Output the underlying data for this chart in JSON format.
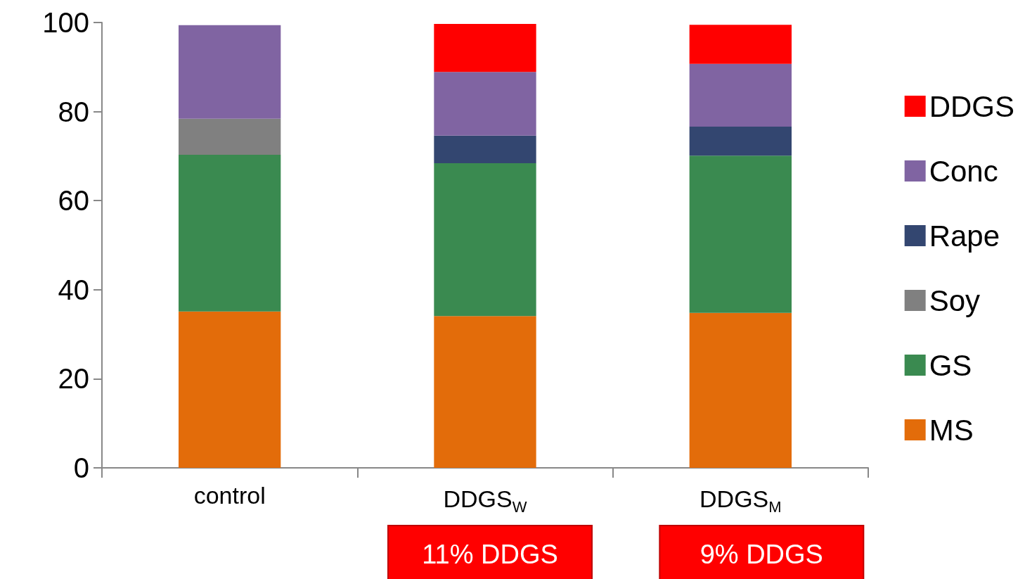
{
  "chart_data": {
    "type": "bar",
    "stacked": true,
    "categories": [
      "control",
      "DDGS$_{W}$",
      "DDGS$_{M}$"
    ],
    "series": [
      {
        "name": "MS",
        "color": "#e36c0a",
        "values": [
          35.1,
          34.1,
          34.8
        ]
      },
      {
        "name": "GS",
        "color": "#3a8a50",
        "values": [
          35.2,
          34.3,
          35.3
        ]
      },
      {
        "name": "Soy",
        "color": "#808080",
        "values": [
          8.1,
          null,
          null
        ]
      },
      {
        "name": "Rape",
        "color": "#334670",
        "values": [
          null,
          6.2,
          6.5
        ]
      },
      {
        "name": "Conc",
        "color": "#8064a2",
        "values": [
          21.0,
          14.3,
          14.1
        ]
      },
      {
        "name": "DDGS",
        "color": "#ff0000",
        "values": [
          null,
          10.8,
          8.8
        ]
      }
    ],
    "ylim": [
      0,
      100
    ],
    "yticks": [
      0,
      20,
      40,
      60,
      80,
      100
    ],
    "grid": false,
    "legend": "right",
    "annotations": [
      "11% DDGS",
      "9% DDGS"
    ]
  }
}
